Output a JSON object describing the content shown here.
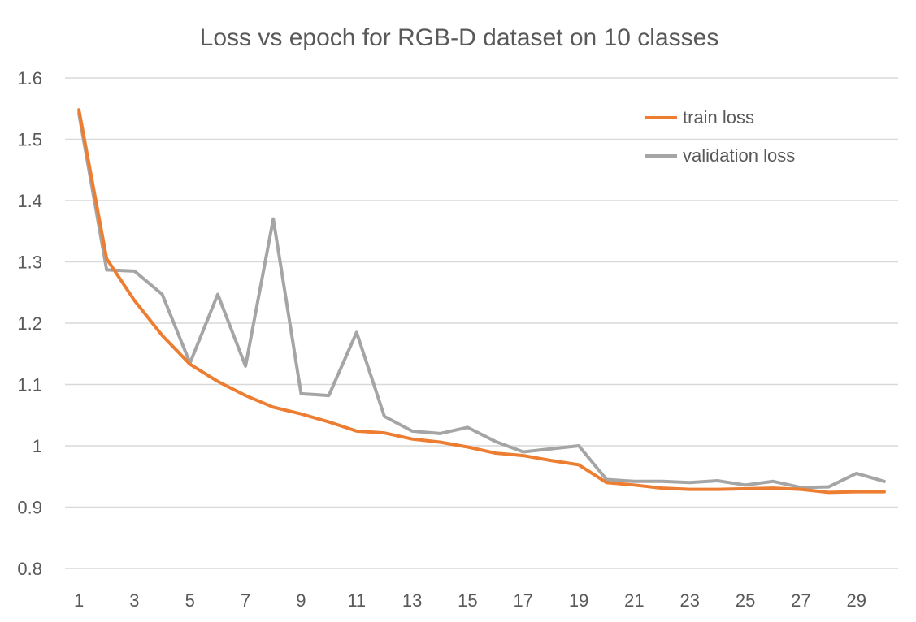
{
  "chart_data": {
    "type": "line",
    "title": "Loss vs epoch for RGB-D dataset on 10 classes",
    "xlabel": "",
    "ylabel": "",
    "x": [
      1,
      2,
      3,
      4,
      5,
      6,
      7,
      8,
      9,
      10,
      11,
      12,
      13,
      14,
      15,
      16,
      17,
      18,
      19,
      20,
      21,
      22,
      23,
      24,
      25,
      26,
      27,
      28,
      29,
      30
    ],
    "x_tick_labels": [
      "1",
      "3",
      "5",
      "7",
      "9",
      "11",
      "13",
      "15",
      "17",
      "19",
      "21",
      "23",
      "25",
      "27",
      "29"
    ],
    "y_tick_labels": [
      "0.8",
      "0.9",
      "1",
      "1.1",
      "1.2",
      "1.3",
      "1.4",
      "1.5",
      "1.6"
    ],
    "ylim": [
      0.8,
      1.6
    ],
    "grid": true,
    "legend_position": "top-right",
    "series": [
      {
        "name": "train loss",
        "color": "#ed7d31",
        "values": [
          1.548,
          1.305,
          1.237,
          1.18,
          1.133,
          1.105,
          1.082,
          1.063,
          1.052,
          1.039,
          1.024,
          1.021,
          1.011,
          1.006,
          0.998,
          0.988,
          0.984,
          0.976,
          0.969,
          0.94,
          0.936,
          0.931,
          0.929,
          0.929,
          0.93,
          0.931,
          0.929,
          0.924,
          0.925,
          0.925
        ]
      },
      {
        "name": "validation loss",
        "color": "#a5a5a5",
        "values": [
          1.542,
          1.287,
          1.285,
          1.247,
          1.135,
          1.247,
          1.13,
          1.37,
          1.085,
          1.082,
          1.185,
          1.048,
          1.024,
          1.02,
          1.03,
          1.007,
          0.99,
          0.995,
          1.0,
          0.945,
          0.942,
          0.942,
          0.94,
          0.943,
          0.936,
          0.942,
          0.932,
          0.933,
          0.955,
          0.942
        ]
      }
    ]
  }
}
